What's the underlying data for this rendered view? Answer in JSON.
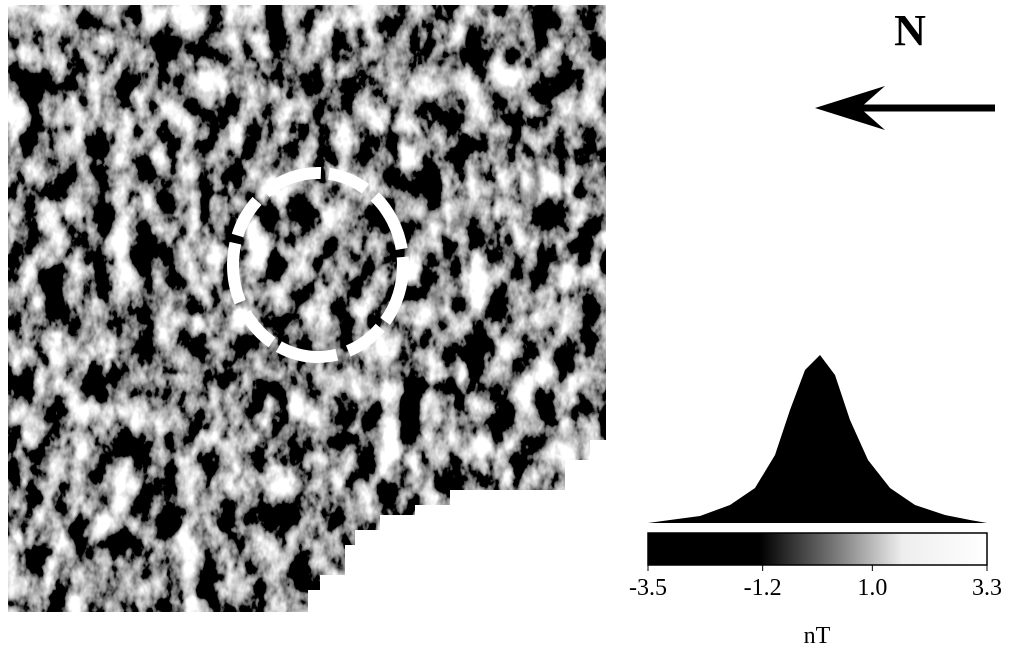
{
  "north_label": "N",
  "colorbar": {
    "ticks": [
      -3.5,
      -1.2,
      {
        "value": 1.0,
        "label": "1.0"
      },
      3.3
    ],
    "range": [
      -3.5,
      3.3
    ],
    "unit": "nT"
  }
}
